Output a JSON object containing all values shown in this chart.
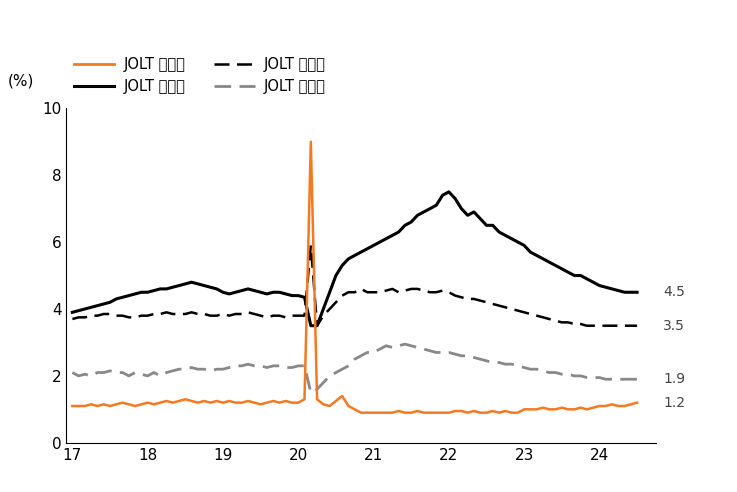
{
  "ylabel": "(%)",
  "ylim": [
    0,
    10
  ],
  "yticks": [
    0,
    2,
    4,
    6,
    8,
    10
  ],
  "xtick_labels": [
    "17",
    "18",
    "19",
    "20",
    "21",
    "22",
    "23",
    "24"
  ],
  "xtick_vals": [
    2017,
    2018,
    2019,
    2020,
    2021,
    2022,
    2023,
    2024
  ],
  "right_labels": [
    {
      "value": 4.5,
      "text": "4.5"
    },
    {
      "value": 3.5,
      "text": "3.5"
    },
    {
      "value": 1.9,
      "text": "1.9"
    },
    {
      "value": 1.2,
      "text": "1.2"
    }
  ],
  "legend": [
    {
      "label": "JOLT 해고율",
      "color": "#F47920",
      "linestyle": "solid",
      "lw": 2.0
    },
    {
      "label": "JOLT 취업률",
      "color": "#000000",
      "linestyle": "solid",
      "lw": 2.2
    },
    {
      "label": "JOLT 고용률",
      "color": "#000000",
      "linestyle": "dashed",
      "lw": 1.8
    },
    {
      "label": "JOLT 퇴직률",
      "color": "#888888",
      "linestyle": "dashed",
      "lw": 2.0
    }
  ],
  "background_color": "#ffffff",
  "series": {
    "해고율": {
      "color": "#F47920",
      "linestyle": "solid",
      "lw": 1.8,
      "x": [
        2017.0,
        2017.083,
        2017.167,
        2017.25,
        2017.333,
        2017.417,
        2017.5,
        2017.583,
        2017.667,
        2017.75,
        2017.833,
        2017.917,
        2018.0,
        2018.083,
        2018.167,
        2018.25,
        2018.333,
        2018.417,
        2018.5,
        2018.583,
        2018.667,
        2018.75,
        2018.833,
        2018.917,
        2019.0,
        2019.083,
        2019.167,
        2019.25,
        2019.333,
        2019.417,
        2019.5,
        2019.583,
        2019.667,
        2019.75,
        2019.833,
        2019.917,
        2020.0,
        2020.083,
        2020.167,
        2020.25,
        2020.333,
        2020.417,
        2020.5,
        2020.583,
        2020.667,
        2020.75,
        2020.833,
        2020.917,
        2021.0,
        2021.083,
        2021.167,
        2021.25,
        2021.333,
        2021.417,
        2021.5,
        2021.583,
        2021.667,
        2021.75,
        2021.833,
        2021.917,
        2022.0,
        2022.083,
        2022.167,
        2022.25,
        2022.333,
        2022.417,
        2022.5,
        2022.583,
        2022.667,
        2022.75,
        2022.833,
        2022.917,
        2023.0,
        2023.083,
        2023.167,
        2023.25,
        2023.333,
        2023.417,
        2023.5,
        2023.583,
        2023.667,
        2023.75,
        2023.833,
        2023.917,
        2024.0,
        2024.083,
        2024.167,
        2024.25,
        2024.333,
        2024.417,
        2024.5
      ],
      "y": [
        1.1,
        1.1,
        1.1,
        1.15,
        1.1,
        1.15,
        1.1,
        1.15,
        1.2,
        1.15,
        1.1,
        1.15,
        1.2,
        1.15,
        1.2,
        1.25,
        1.2,
        1.25,
        1.3,
        1.25,
        1.2,
        1.25,
        1.2,
        1.25,
        1.2,
        1.25,
        1.2,
        1.2,
        1.25,
        1.2,
        1.15,
        1.2,
        1.25,
        1.2,
        1.25,
        1.2,
        1.2,
        1.3,
        9.0,
        1.3,
        1.15,
        1.1,
        1.25,
        1.4,
        1.1,
        1.0,
        0.9,
        0.9,
        0.9,
        0.9,
        0.9,
        0.9,
        0.95,
        0.9,
        0.9,
        0.95,
        0.9,
        0.9,
        0.9,
        0.9,
        0.9,
        0.95,
        0.95,
        0.9,
        0.95,
        0.9,
        0.9,
        0.95,
        0.9,
        0.95,
        0.9,
        0.9,
        1.0,
        1.0,
        1.0,
        1.05,
        1.0,
        1.0,
        1.05,
        1.0,
        1.0,
        1.05,
        1.0,
        1.05,
        1.1,
        1.1,
        1.15,
        1.1,
        1.1,
        1.15,
        1.2
      ]
    },
    "취업률": {
      "color": "#000000",
      "linestyle": "solid",
      "lw": 2.2,
      "x": [
        2017.0,
        2017.083,
        2017.167,
        2017.25,
        2017.333,
        2017.417,
        2017.5,
        2017.583,
        2017.667,
        2017.75,
        2017.833,
        2017.917,
        2018.0,
        2018.083,
        2018.167,
        2018.25,
        2018.333,
        2018.417,
        2018.5,
        2018.583,
        2018.667,
        2018.75,
        2018.833,
        2018.917,
        2019.0,
        2019.083,
        2019.167,
        2019.25,
        2019.333,
        2019.417,
        2019.5,
        2019.583,
        2019.667,
        2019.75,
        2019.833,
        2019.917,
        2020.0,
        2020.083,
        2020.167,
        2020.25,
        2020.333,
        2020.417,
        2020.5,
        2020.583,
        2020.667,
        2020.75,
        2020.833,
        2020.917,
        2021.0,
        2021.083,
        2021.167,
        2021.25,
        2021.333,
        2021.417,
        2021.5,
        2021.583,
        2021.667,
        2021.75,
        2021.833,
        2021.917,
        2022.0,
        2022.083,
        2022.167,
        2022.25,
        2022.333,
        2022.417,
        2022.5,
        2022.583,
        2022.667,
        2022.75,
        2022.833,
        2022.917,
        2023.0,
        2023.083,
        2023.167,
        2023.25,
        2023.333,
        2023.417,
        2023.5,
        2023.583,
        2023.667,
        2023.75,
        2023.833,
        2023.917,
        2024.0,
        2024.083,
        2024.167,
        2024.25,
        2024.333,
        2024.417,
        2024.5
      ],
      "y": [
        3.9,
        3.95,
        4.0,
        4.05,
        4.1,
        4.15,
        4.2,
        4.3,
        4.35,
        4.4,
        4.45,
        4.5,
        4.5,
        4.55,
        4.6,
        4.6,
        4.65,
        4.7,
        4.75,
        4.8,
        4.75,
        4.7,
        4.65,
        4.6,
        4.5,
        4.45,
        4.5,
        4.55,
        4.6,
        4.55,
        4.5,
        4.45,
        4.5,
        4.5,
        4.45,
        4.4,
        4.4,
        4.35,
        3.5,
        3.5,
        4.0,
        4.5,
        5.0,
        5.3,
        5.5,
        5.6,
        5.7,
        5.8,
        5.9,
        6.0,
        6.1,
        6.2,
        6.3,
        6.5,
        6.6,
        6.8,
        6.9,
        7.0,
        7.1,
        7.4,
        7.5,
        7.3,
        7.0,
        6.8,
        6.9,
        6.7,
        6.5,
        6.5,
        6.3,
        6.2,
        6.1,
        6.0,
        5.9,
        5.7,
        5.6,
        5.5,
        5.4,
        5.3,
        5.2,
        5.1,
        5.0,
        5.0,
        4.9,
        4.8,
        4.7,
        4.65,
        4.6,
        4.55,
        4.5,
        4.5,
        4.5
      ]
    },
    "고용률": {
      "color": "#000000",
      "linestyle": "dashed",
      "lw": 1.8,
      "x": [
        2017.0,
        2017.083,
        2017.167,
        2017.25,
        2017.333,
        2017.417,
        2017.5,
        2017.583,
        2017.667,
        2017.75,
        2017.833,
        2017.917,
        2018.0,
        2018.083,
        2018.167,
        2018.25,
        2018.333,
        2018.417,
        2018.5,
        2018.583,
        2018.667,
        2018.75,
        2018.833,
        2018.917,
        2019.0,
        2019.083,
        2019.167,
        2019.25,
        2019.333,
        2019.417,
        2019.5,
        2019.583,
        2019.667,
        2019.75,
        2019.833,
        2019.917,
        2020.0,
        2020.083,
        2020.167,
        2020.25,
        2020.333,
        2020.417,
        2020.5,
        2020.583,
        2020.667,
        2020.75,
        2020.833,
        2020.917,
        2021.0,
        2021.083,
        2021.167,
        2021.25,
        2021.333,
        2021.417,
        2021.5,
        2021.583,
        2021.667,
        2021.75,
        2021.833,
        2021.917,
        2022.0,
        2022.083,
        2022.167,
        2022.25,
        2022.333,
        2022.417,
        2022.5,
        2022.583,
        2022.667,
        2022.75,
        2022.833,
        2022.917,
        2023.0,
        2023.083,
        2023.167,
        2023.25,
        2023.333,
        2023.417,
        2023.5,
        2023.583,
        2023.667,
        2023.75,
        2023.833,
        2023.917,
        2024.0,
        2024.083,
        2024.167,
        2024.25,
        2024.333,
        2024.417,
        2024.5
      ],
      "y": [
        3.7,
        3.75,
        3.75,
        3.8,
        3.8,
        3.85,
        3.85,
        3.8,
        3.8,
        3.75,
        3.75,
        3.8,
        3.8,
        3.85,
        3.85,
        3.9,
        3.85,
        3.85,
        3.85,
        3.9,
        3.85,
        3.85,
        3.8,
        3.8,
        3.85,
        3.8,
        3.85,
        3.85,
        3.9,
        3.85,
        3.8,
        3.75,
        3.8,
        3.8,
        3.75,
        3.8,
        3.8,
        3.8,
        5.9,
        3.5,
        3.8,
        4.0,
        4.2,
        4.4,
        4.5,
        4.5,
        4.6,
        4.5,
        4.5,
        4.5,
        4.55,
        4.6,
        4.5,
        4.55,
        4.6,
        4.6,
        4.55,
        4.5,
        4.5,
        4.55,
        4.5,
        4.4,
        4.35,
        4.3,
        4.3,
        4.25,
        4.2,
        4.15,
        4.1,
        4.05,
        4.0,
        3.95,
        3.9,
        3.85,
        3.8,
        3.75,
        3.7,
        3.65,
        3.6,
        3.6,
        3.55,
        3.55,
        3.5,
        3.5,
        3.5,
        3.5,
        3.5,
        3.5,
        3.5,
        3.5,
        3.5
      ]
    },
    "퇴직률": {
      "color": "#888888",
      "linestyle": "dashed",
      "lw": 2.0,
      "x": [
        2017.0,
        2017.083,
        2017.167,
        2017.25,
        2017.333,
        2017.417,
        2017.5,
        2017.583,
        2017.667,
        2017.75,
        2017.833,
        2017.917,
        2018.0,
        2018.083,
        2018.167,
        2018.25,
        2018.333,
        2018.417,
        2018.5,
        2018.583,
        2018.667,
        2018.75,
        2018.833,
        2018.917,
        2019.0,
        2019.083,
        2019.167,
        2019.25,
        2019.333,
        2019.417,
        2019.5,
        2019.583,
        2019.667,
        2019.75,
        2019.833,
        2019.917,
        2020.0,
        2020.083,
        2020.167,
        2020.25,
        2020.333,
        2020.417,
        2020.5,
        2020.583,
        2020.667,
        2020.75,
        2020.833,
        2020.917,
        2021.0,
        2021.083,
        2021.167,
        2021.25,
        2021.333,
        2021.417,
        2021.5,
        2021.583,
        2021.667,
        2021.75,
        2021.833,
        2021.917,
        2022.0,
        2022.083,
        2022.167,
        2022.25,
        2022.333,
        2022.417,
        2022.5,
        2022.583,
        2022.667,
        2022.75,
        2022.833,
        2022.917,
        2023.0,
        2023.083,
        2023.167,
        2023.25,
        2023.333,
        2023.417,
        2023.5,
        2023.583,
        2023.667,
        2023.75,
        2023.833,
        2023.917,
        2024.0,
        2024.083,
        2024.167,
        2024.25,
        2024.333,
        2024.417,
        2024.5
      ],
      "y": [
        2.1,
        2.0,
        2.05,
        2.0,
        2.1,
        2.1,
        2.15,
        2.1,
        2.1,
        2.0,
        2.1,
        2.05,
        2.0,
        2.1,
        2.0,
        2.1,
        2.15,
        2.2,
        2.2,
        2.25,
        2.2,
        2.2,
        2.15,
        2.2,
        2.2,
        2.25,
        2.3,
        2.3,
        2.35,
        2.3,
        2.3,
        2.25,
        2.3,
        2.3,
        2.25,
        2.25,
        2.3,
        2.3,
        1.5,
        1.6,
        1.8,
        2.0,
        2.1,
        2.2,
        2.3,
        2.5,
        2.6,
        2.7,
        2.7,
        2.8,
        2.9,
        2.85,
        2.9,
        2.95,
        2.9,
        2.85,
        2.8,
        2.75,
        2.7,
        2.7,
        2.7,
        2.65,
        2.6,
        2.6,
        2.55,
        2.5,
        2.45,
        2.4,
        2.4,
        2.35,
        2.35,
        2.3,
        2.25,
        2.2,
        2.2,
        2.15,
        2.1,
        2.1,
        2.05,
        2.05,
        2.0,
        2.0,
        1.95,
        1.95,
        1.95,
        1.9,
        1.9,
        1.9,
        1.9,
        1.9,
        1.9
      ]
    }
  }
}
